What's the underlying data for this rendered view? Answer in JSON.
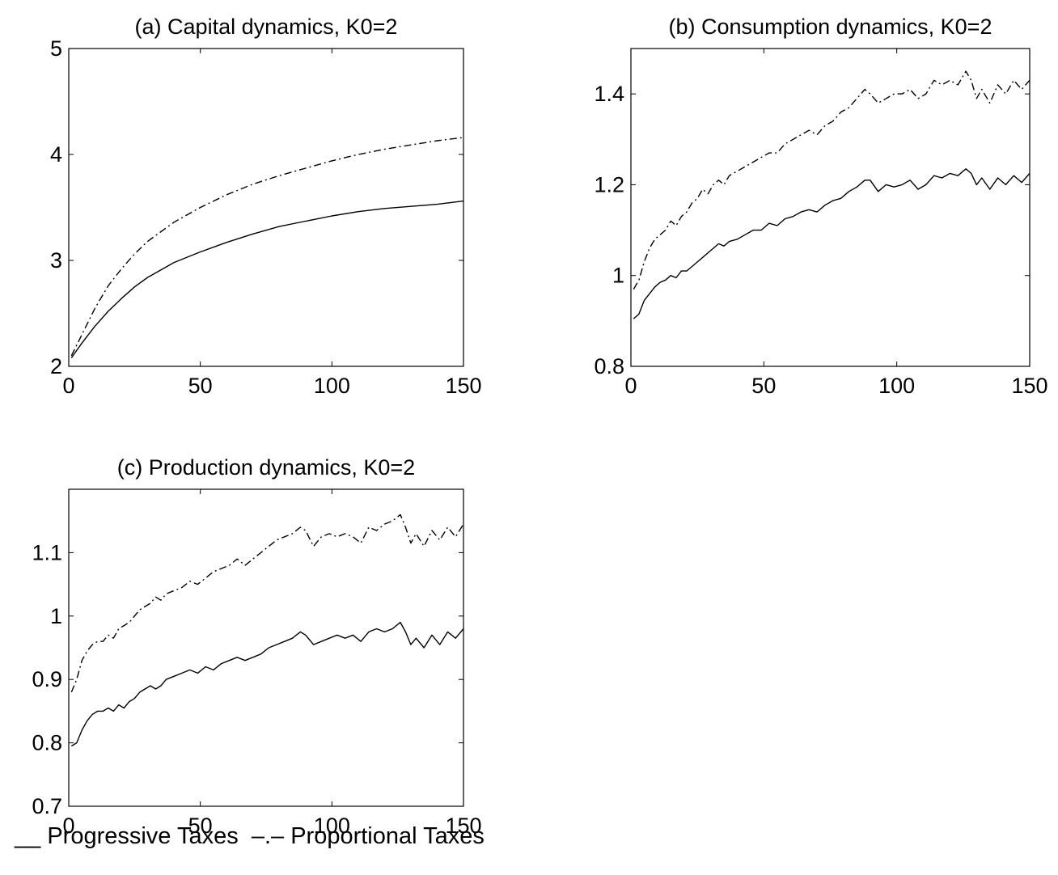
{
  "legend_text": "__ Progressive Taxes  –.– Proportional Taxes",
  "chart_data": [
    {
      "type": "line",
      "title": "(a) Capital dynamics, K0=2",
      "xlabel": "",
      "ylabel": "",
      "xlim": [
        0,
        150
      ],
      "ylim": [
        2,
        5
      ],
      "xticks": [
        0,
        50,
        100,
        150
      ],
      "yticks": [
        2,
        3,
        4,
        5
      ],
      "grid": false,
      "series": [
        {
          "style": "solid",
          "x": [
            1,
            5,
            10,
            15,
            20,
            25,
            30,
            40,
            50,
            60,
            70,
            80,
            90,
            100,
            110,
            120,
            130,
            140,
            150
          ],
          "y": [
            2.08,
            2.22,
            2.38,
            2.52,
            2.64,
            2.75,
            2.84,
            2.98,
            3.08,
            3.17,
            3.25,
            3.32,
            3.37,
            3.42,
            3.46,
            3.49,
            3.51,
            3.53,
            3.56
          ]
        },
        {
          "style": "dashdot",
          "x": [
            1,
            5,
            10,
            15,
            20,
            25,
            30,
            40,
            50,
            60,
            70,
            80,
            90,
            100,
            110,
            120,
            130,
            140,
            150
          ],
          "y": [
            2.1,
            2.3,
            2.55,
            2.76,
            2.92,
            3.06,
            3.18,
            3.36,
            3.5,
            3.62,
            3.72,
            3.8,
            3.87,
            3.94,
            4.0,
            4.05,
            4.09,
            4.13,
            4.16
          ]
        }
      ]
    },
    {
      "type": "line",
      "title": "(b) Consumption dynamics, K0=2",
      "xlabel": "",
      "ylabel": "",
      "xlim": [
        0,
        150
      ],
      "ylim": [
        0.8,
        1.5
      ],
      "xticks": [
        0,
        50,
        100,
        150
      ],
      "yticks": [
        0.8,
        1,
        1.2,
        1.4
      ],
      "grid": false,
      "series": [
        {
          "style": "solid",
          "x": [
            1,
            3,
            5,
            7,
            9,
            11,
            13,
            15,
            17,
            19,
            21,
            23,
            25,
            27,
            29,
            31,
            33,
            35,
            37,
            40,
            43,
            46,
            49,
            52,
            55,
            58,
            61,
            64,
            67,
            70,
            73,
            76,
            79,
            82,
            85,
            88,
            90,
            93,
            96,
            99,
            102,
            105,
            108,
            111,
            114,
            117,
            120,
            123,
            126,
            128,
            130,
            132,
            135,
            138,
            141,
            144,
            147,
            150
          ],
          "y": [
            0.905,
            0.915,
            0.945,
            0.96,
            0.975,
            0.985,
            0.99,
            1.0,
            0.995,
            1.01,
            1.01,
            1.02,
            1.03,
            1.04,
            1.05,
            1.06,
            1.07,
            1.065,
            1.075,
            1.08,
            1.09,
            1.1,
            1.1,
            1.115,
            1.11,
            1.125,
            1.13,
            1.14,
            1.145,
            1.14,
            1.155,
            1.165,
            1.17,
            1.185,
            1.195,
            1.21,
            1.21,
            1.185,
            1.2,
            1.195,
            1.2,
            1.21,
            1.19,
            1.2,
            1.22,
            1.215,
            1.225,
            1.22,
            1.235,
            1.225,
            1.2,
            1.215,
            1.19,
            1.215,
            1.2,
            1.22,
            1.205,
            1.225
          ]
        },
        {
          "style": "dashdot",
          "x": [
            1,
            3,
            5,
            7,
            9,
            11,
            13,
            15,
            17,
            19,
            21,
            23,
            25,
            27,
            29,
            31,
            33,
            35,
            37,
            40,
            43,
            46,
            49,
            52,
            55,
            58,
            61,
            64,
            67,
            70,
            73,
            76,
            79,
            82,
            85,
            88,
            90,
            93,
            96,
            99,
            102,
            105,
            108,
            111,
            114,
            117,
            120,
            123,
            126,
            128,
            130,
            132,
            135,
            138,
            141,
            144,
            147,
            150
          ],
          "y": [
            0.97,
            0.99,
            1.03,
            1.06,
            1.08,
            1.09,
            1.1,
            1.12,
            1.11,
            1.13,
            1.14,
            1.16,
            1.17,
            1.19,
            1.18,
            1.2,
            1.21,
            1.2,
            1.22,
            1.23,
            1.24,
            1.25,
            1.26,
            1.27,
            1.27,
            1.29,
            1.3,
            1.31,
            1.32,
            1.31,
            1.33,
            1.34,
            1.36,
            1.37,
            1.39,
            1.41,
            1.4,
            1.38,
            1.39,
            1.4,
            1.4,
            1.41,
            1.39,
            1.4,
            1.43,
            1.42,
            1.43,
            1.42,
            1.45,
            1.43,
            1.39,
            1.41,
            1.38,
            1.42,
            1.4,
            1.43,
            1.41,
            1.43
          ]
        }
      ]
    },
    {
      "type": "line",
      "title": "(c) Production dynamics, K0=2",
      "xlabel": "",
      "ylabel": "",
      "xlim": [
        0,
        150
      ],
      "ylim": [
        0.7,
        1.2
      ],
      "xticks": [
        0,
        50,
        100,
        150
      ],
      "yticks": [
        0.7,
        0.8,
        0.9,
        1,
        1.1
      ],
      "grid": false,
      "series": [
        {
          "style": "solid",
          "x": [
            1,
            3,
            5,
            7,
            9,
            11,
            13,
            15,
            17,
            19,
            21,
            23,
            25,
            27,
            29,
            31,
            33,
            35,
            37,
            40,
            43,
            46,
            49,
            52,
            55,
            58,
            61,
            64,
            67,
            70,
            73,
            76,
            79,
            82,
            85,
            88,
            90,
            93,
            96,
            99,
            102,
            105,
            108,
            111,
            114,
            117,
            120,
            123,
            126,
            128,
            130,
            132,
            135,
            138,
            141,
            144,
            147,
            150
          ],
          "y": [
            0.795,
            0.8,
            0.82,
            0.835,
            0.845,
            0.85,
            0.85,
            0.855,
            0.85,
            0.86,
            0.855,
            0.865,
            0.87,
            0.88,
            0.885,
            0.89,
            0.885,
            0.89,
            0.9,
            0.905,
            0.91,
            0.915,
            0.91,
            0.92,
            0.915,
            0.925,
            0.93,
            0.935,
            0.93,
            0.935,
            0.94,
            0.95,
            0.955,
            0.96,
            0.965,
            0.975,
            0.97,
            0.955,
            0.96,
            0.965,
            0.97,
            0.965,
            0.97,
            0.96,
            0.975,
            0.98,
            0.975,
            0.98,
            0.99,
            0.975,
            0.955,
            0.965,
            0.95,
            0.97,
            0.955,
            0.975,
            0.965,
            0.98
          ]
        },
        {
          "style": "dashdot",
          "x": [
            1,
            3,
            5,
            7,
            9,
            11,
            13,
            15,
            17,
            19,
            21,
            23,
            25,
            27,
            29,
            31,
            33,
            35,
            37,
            40,
            43,
            46,
            49,
            52,
            55,
            58,
            61,
            64,
            67,
            70,
            73,
            76,
            79,
            82,
            85,
            88,
            90,
            93,
            96,
            99,
            102,
            105,
            108,
            111,
            114,
            117,
            120,
            123,
            126,
            128,
            130,
            132,
            135,
            138,
            141,
            144,
            147,
            150
          ],
          "y": [
            0.88,
            0.9,
            0.93,
            0.945,
            0.955,
            0.96,
            0.96,
            0.97,
            0.965,
            0.98,
            0.985,
            0.99,
            1.0,
            1.01,
            1.015,
            1.02,
            1.03,
            1.025,
            1.035,
            1.04,
            1.045,
            1.055,
            1.05,
            1.06,
            1.07,
            1.075,
            1.08,
            1.09,
            1.08,
            1.09,
            1.1,
            1.11,
            1.12,
            1.125,
            1.13,
            1.14,
            1.135,
            1.11,
            1.125,
            1.13,
            1.125,
            1.13,
            1.125,
            1.115,
            1.14,
            1.135,
            1.145,
            1.15,
            1.16,
            1.14,
            1.115,
            1.13,
            1.11,
            1.135,
            1.12,
            1.14,
            1.125,
            1.145
          ]
        }
      ]
    }
  ]
}
